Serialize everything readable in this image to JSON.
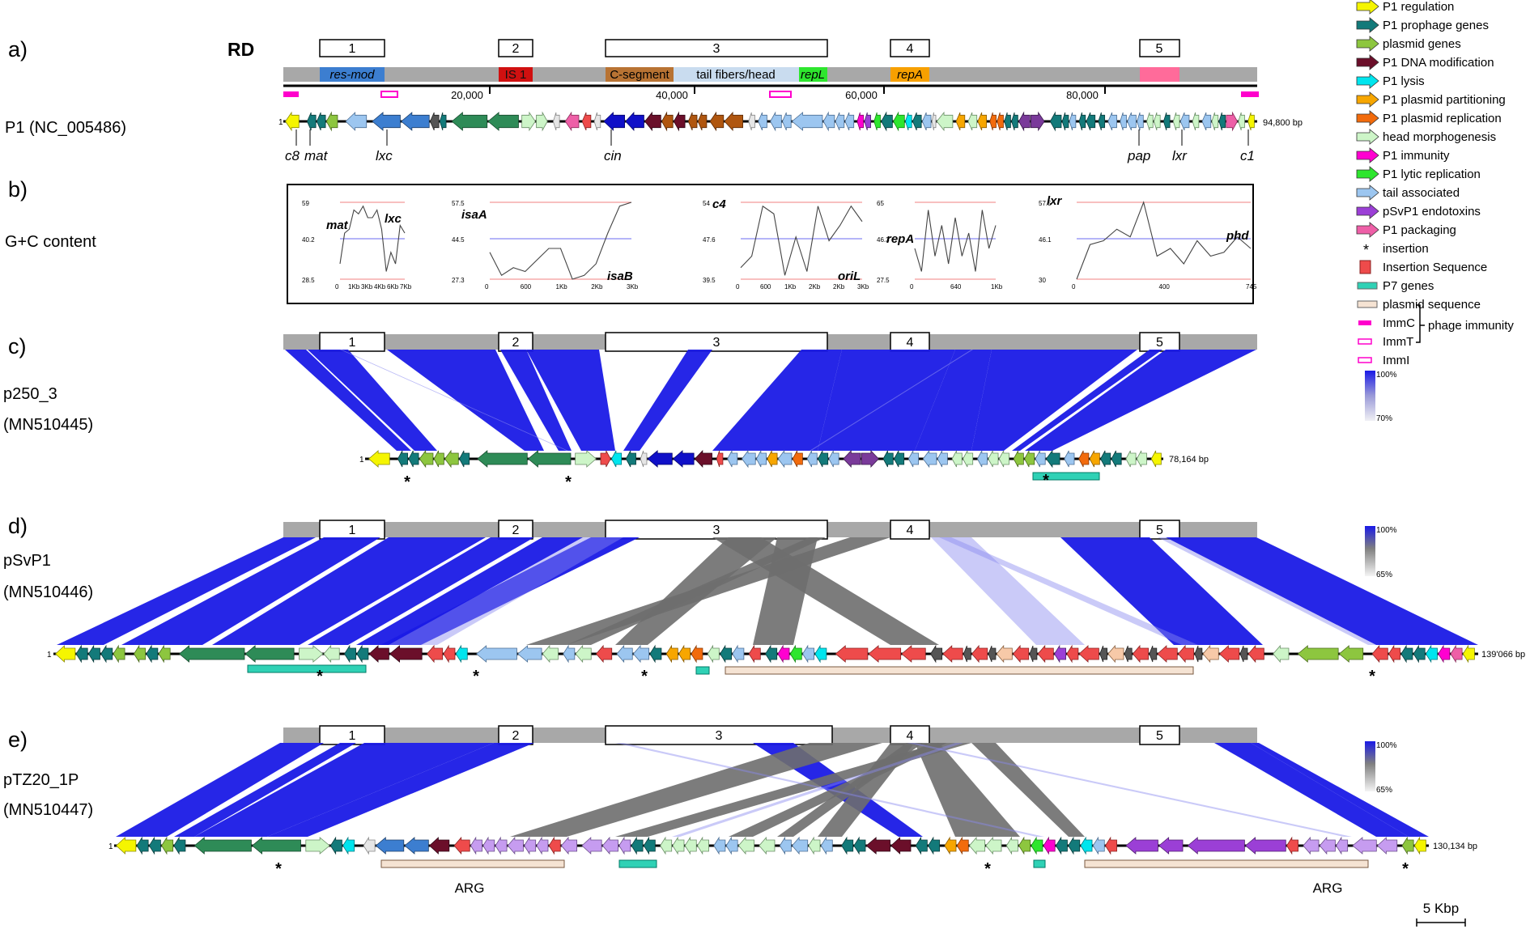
{
  "panels": {
    "a": {
      "letter": "a)",
      "name": "P1 (NC_005486)",
      "length": "94,800 bp"
    },
    "b": {
      "letter": "b)",
      "name": "G+C content"
    },
    "c": {
      "letter": "c)",
      "name": "p250_3",
      "accession": "(MN510445)",
      "length": "78,164 bp",
      "scale_max": "100%",
      "scale_min": "70%"
    },
    "d": {
      "letter": "d)",
      "name": "pSvP1",
      "accession": "(MN510446)",
      "length": "139'066 bp",
      "scale_max": "100%",
      "scale_min": "65%"
    },
    "e": {
      "letter": "e)",
      "name": "pTZ20_1P",
      "accession": "(MN510447)",
      "length": "130,134 bp",
      "scale_max": "100%",
      "scale_min": "65%"
    }
  },
  "rd_label": "RD",
  "regions": [
    "1",
    "2",
    "3",
    "4",
    "5"
  ],
  "rd_segments": {
    "res_mod": "res-mod",
    "is1": "IS 1",
    "cseg": "C-segment",
    "tail": "tail fibers/head",
    "repl": "repL",
    "repa": "repA"
  },
  "ruler": {
    "t20": "20,000",
    "t40": "40,000",
    "t60": "60,000",
    "t80": "80,000"
  },
  "start_number": "1",
  "gene_labels": {
    "c8": "c8",
    "mat": "mat",
    "lxc": "lxc",
    "cin": "cin",
    "pap": "pap",
    "lxr": "lxr",
    "c1": "c1"
  },
  "gc_plots": [
    {
      "gene_a": "mat",
      "gene_b": "lxc",
      "y_top": "59",
      "y_mid": "40.2",
      "y_bot": "28.5",
      "x_ticks": [
        "0",
        "1Kb",
        "3Kb",
        "4Kb",
        "6Kb",
        "7Kb"
      ]
    },
    {
      "gene_a": "isaA",
      "gene_b": "isaB",
      "y_top": "57.5",
      "y_mid": "44.5",
      "y_bot": "27.3",
      "x_ticks": [
        "0",
        "600",
        "1Kb",
        "2Kb",
        "3Kb"
      ]
    },
    {
      "gene_a": "c4",
      "gene_b": "oriL",
      "y_top": "54",
      "y_mid": "47.6",
      "y_bot": "39.5",
      "x_ticks": [
        "0",
        "600",
        "1Kb",
        "2Kb",
        "2Kb",
        "3Kb"
      ]
    },
    {
      "gene_a": "repA",
      "gene_b": "",
      "y_top": "65",
      "y_mid": "46.3",
      "y_bot": "27.5",
      "x_ticks": [
        "0",
        "640",
        "1Kb"
      ]
    },
    {
      "gene_a": "lxr",
      "gene_b": "phd",
      "y_top": "57.5",
      "y_mid": "46.1",
      "y_bot": "30",
      "x_ticks": [
        "0",
        "400",
        "745"
      ]
    }
  ],
  "arg_label": "ARG",
  "insertion_mark": "*",
  "scale_bar": "5 Kbp",
  "legend": [
    {
      "label": "P1 regulation",
      "color": "#f5f500",
      "kind": "arrow"
    },
    {
      "label": "P1 prophage genes",
      "color": "#137a7a",
      "kind": "arrow"
    },
    {
      "label": "plasmid genes",
      "color": "#8dc63f",
      "kind": "arrow"
    },
    {
      "label": "P1 DNA modification",
      "color": "#6b0f2a",
      "kind": "arrow"
    },
    {
      "label": "P1 lysis",
      "color": "#00e5ee",
      "kind": "arrow"
    },
    {
      "label": "P1 plasmid partitioning",
      "color": "#f7a600",
      "kind": "arrow"
    },
    {
      "label": "P1 plasmid replication",
      "color": "#f26b0c",
      "kind": "arrow"
    },
    {
      "label": "head morphogenesis",
      "color": "#cdf5c8",
      "kind": "arrow"
    },
    {
      "label": "P1 immunity",
      "color": "#ff00d0",
      "kind": "arrow"
    },
    {
      "label": "P1 lytic replication",
      "color": "#2ee62e",
      "kind": "arrow"
    },
    {
      "label": "tail associated",
      "color": "#9cc6f0",
      "kind": "arrow"
    },
    {
      "label": "pSvP1 endotoxins",
      "color": "#9b3fd6",
      "kind": "arrow"
    },
    {
      "label": "P1 packaging",
      "color": "#ee5fa7",
      "kind": "arrow"
    },
    {
      "label": "insertion",
      "color": "#000000",
      "kind": "star"
    },
    {
      "label": "Insertion Sequence",
      "color": "#ee4b4b",
      "kind": "box"
    },
    {
      "label": "P7 genes",
      "color": "#2fd1b5",
      "kind": "bar"
    },
    {
      "label": "plasmid sequence",
      "color": "#f5e3d3",
      "kind": "bar"
    },
    {
      "label": "ImmC",
      "color": "#ff00cc",
      "kind": "imm-solid"
    },
    {
      "label": "ImmT",
      "color": "#ff00cc",
      "kind": "imm-open"
    },
    {
      "label": "ImmI",
      "color": "#ff00cc",
      "kind": "imm-open"
    }
  ],
  "legend_bracket": "phage immunity",
  "colors": {
    "blue": "#1a1ae6",
    "grey": "#6e6e6e",
    "rd_bar": "#a8a8a8",
    "p7": "#2fd1b5",
    "plasmid": "#f5e3d3"
  }
}
